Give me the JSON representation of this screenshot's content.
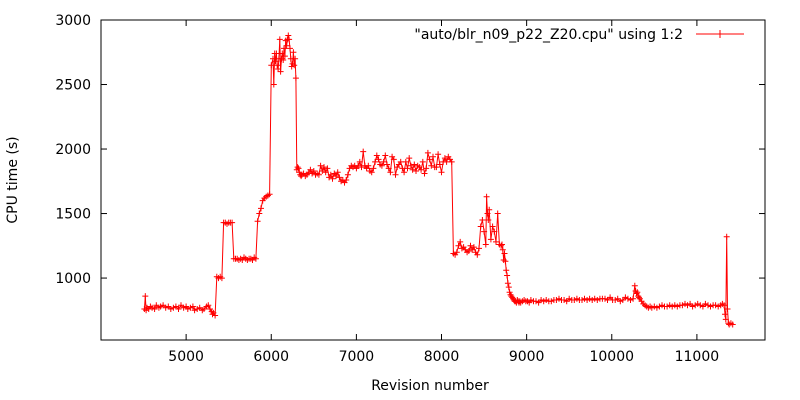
{
  "chart_data": {
    "type": "line",
    "xlabel": "Revision number",
    "ylabel": "CPU time (s)",
    "xlim": [
      4000,
      11800
    ],
    "ylim": [
      520,
      3000
    ],
    "xticks": [
      5000,
      6000,
      7000,
      8000,
      9000,
      10000,
      11000
    ],
    "yticks": [
      1000,
      1500,
      2000,
      2500,
      3000
    ],
    "legend": "top-right",
    "line_color": "#ff0000",
    "series": [
      {
        "name": "\"auto/blr_n09_p22_Z20.cpu\" using 1:2",
        "x": [
          4510,
          4520,
          4530,
          4540,
          4560,
          4580,
          4600,
          4630,
          4650,
          4680,
          4700,
          4730,
          4760,
          4790,
          4820,
          4850,
          4880,
          4910,
          4940,
          4970,
          5000,
          5020,
          5050,
          5080,
          5100,
          5130,
          5160,
          5190,
          5210,
          5240,
          5260,
          5280,
          5300,
          5310,
          5320,
          5340,
          5360,
          5380,
          5400,
          5420,
          5440,
          5460,
          5480,
          5500,
          5520,
          5540,
          5560,
          5580,
          5600,
          5620,
          5640,
          5660,
          5680,
          5700,
          5720,
          5740,
          5760,
          5780,
          5800,
          5820,
          5840,
          5860,
          5880,
          5900,
          5920,
          5940,
          5960,
          5980,
          6000,
          6020,
          6030,
          6040,
          6050,
          6060,
          6070,
          6080,
          6090,
          6100,
          6110,
          6120,
          6130,
          6140,
          6150,
          6160,
          6170,
          6180,
          6190,
          6200,
          6210,
          6220,
          6230,
          6240,
          6250,
          6260,
          6270,
          6280,
          6290,
          6300,
          6310,
          6320,
          6330,
          6340,
          6350,
          6360,
          6380,
          6400,
          6420,
          6440,
          6460,
          6480,
          6500,
          6520,
          6540,
          6560,
          6580,
          6600,
          6620,
          6640,
          6660,
          6680,
          6700,
          6720,
          6740,
          6760,
          6780,
          6800,
          6820,
          6840,
          6860,
          6880,
          6900,
          6920,
          6940,
          6960,
          6980,
          7000,
          7020,
          7040,
          7060,
          7080,
          7100,
          7120,
          7140,
          7160,
          7180,
          7200,
          7220,
          7240,
          7260,
          7280,
          7300,
          7320,
          7340,
          7360,
          7380,
          7400,
          7420,
          7440,
          7460,
          7480,
          7500,
          7520,
          7540,
          7560,
          7580,
          7600,
          7620,
          7640,
          7660,
          7680,
          7700,
          7720,
          7740,
          7760,
          7780,
          7800,
          7820,
          7840,
          7860,
          7880,
          7900,
          7920,
          7940,
          7960,
          7980,
          8000,
          8020,
          8040,
          8060,
          8080,
          8100,
          8120,
          8140,
          8160,
          8180,
          8200,
          8220,
          8240,
          8260,
          8280,
          8300,
          8320,
          8340,
          8360,
          8380,
          8400,
          8420,
          8440,
          8460,
          8480,
          8500,
          8520,
          8530,
          8540,
          8550,
          8560,
          8580,
          8600,
          8620,
          8640,
          8660,
          8680,
          8700,
          8710,
          8720,
          8730,
          8740,
          8750,
          8760,
          8770,
          8780,
          8790,
          8800,
          8810,
          8820,
          8830,
          8840,
          8850,
          8860,
          8870,
          8880,
          8890,
          8900,
          8910,
          8920,
          8930,
          8950,
          8970,
          8990,
          9010,
          9030,
          9050,
          9080,
          9110,
          9140,
          9170,
          9200,
          9230,
          9260,
          9290,
          9320,
          9350,
          9380,
          9410,
          9440,
          9470,
          9500,
          9530,
          9560,
          9590,
          9620,
          9650,
          9680,
          9710,
          9740,
          9770,
          9800,
          9830,
          9860,
          9890,
          9920,
          9950,
          9980,
          10010,
          10040,
          10070,
          10100,
          10130,
          10160,
          10190,
          10220,
          10250,
          10270,
          10280,
          10290,
          10300,
          10310,
          10320,
          10330,
          10350,
          10370,
          10390,
          10410,
          10430,
          10450,
          10470,
          10500,
          10530,
          10560,
          10590,
          10620,
          10650,
          10680,
          10710,
          10740,
          10770,
          10800,
          10830,
          10860,
          10890,
          10920,
          10950,
          10980,
          11010,
          11040,
          11070,
          11100,
          11130,
          11160,
          11190,
          11220,
          11250,
          11280,
          11300,
          11320,
          11330,
          11340,
          11350,
          11360,
          11370,
          11380,
          11400,
          11420
        ],
        "y": [
          760,
          860,
          750,
          770,
          760,
          780,
          770,
          760,
          790,
          770,
          780,
          790,
          770,
          780,
          760,
          770,
          780,
          760,
          790,
          770,
          780,
          760,
          770,
          780,
          750,
          760,
          770,
          750,
          760,
          780,
          790,
          760,
          740,
          720,
          730,
          710,
          1010,
          1000,
          1010,
          1000,
          1430,
          1430,
          1420,
          1430,
          1430,
          1430,
          1150,
          1150,
          1150,
          1140,
          1150,
          1140,
          1160,
          1150,
          1140,
          1150,
          1150,
          1140,
          1160,
          1150,
          1440,
          1500,
          1540,
          1600,
          1620,
          1630,
          1640,
          1650,
          2650,
          2700,
          2500,
          2740,
          2680,
          2740,
          2650,
          2620,
          2700,
          2850,
          2600,
          2700,
          2740,
          2690,
          2780,
          2720,
          2840,
          2800,
          2850,
          2880,
          2850,
          2780,
          2700,
          2640,
          2660,
          2750,
          2650,
          2700,
          2550,
          1840,
          1860,
          1850,
          1820,
          1800,
          1790,
          1800,
          1810,
          1790,
          1800,
          1820,
          1840,
          1810,
          1830,
          1800,
          1810,
          1800,
          1870,
          1830,
          1860,
          1820,
          1850,
          1780,
          1800,
          1770,
          1810,
          1790,
          1820,
          1780,
          1750,
          1760,
          1740,
          1760,
          1800,
          1850,
          1870,
          1860,
          1870,
          1850,
          1870,
          1900,
          1860,
          1980,
          1870,
          1850,
          1870,
          1830,
          1820,
          1850,
          1900,
          1950,
          1920,
          1880,
          1870,
          1900,
          1950,
          1880,
          1850,
          1820,
          1940,
          1920,
          1800,
          1860,
          1880,
          1900,
          1850,
          1820,
          1900,
          1850,
          1930,
          1870,
          1840,
          1880,
          1830,
          1870,
          1860,
          1840,
          1900,
          1810,
          1850,
          1970,
          1920,
          1870,
          1940,
          1860,
          1860,
          1960,
          1880,
          1820,
          1900,
          1930,
          1900,
          1940,
          1920,
          1900,
          1190,
          1180,
          1200,
          1250,
          1280,
          1230,
          1240,
          1220,
          1200,
          1210,
          1250,
          1220,
          1240,
          1200,
          1180,
          1230,
          1400,
          1450,
          1360,
          1260,
          1630,
          1500,
          1450,
          1530,
          1300,
          1400,
          1360,
          1280,
          1500,
          1260,
          1250,
          1260,
          1220,
          1140,
          1190,
          1130,
          1060,
          1020,
          960,
          930,
          890,
          870,
          860,
          850,
          840,
          830,
          820,
          820,
          810,
          830,
          820,
          810,
          820,
          810,
          820,
          830,
          820,
          820,
          810,
          830,
          820,
          820,
          810,
          830,
          820,
          830,
          820,
          820,
          830,
          830,
          840,
          830,
          830,
          820,
          840,
          830,
          830,
          840,
          830,
          830,
          840,
          830,
          840,
          830,
          840,
          830,
          840,
          840,
          840,
          830,
          850,
          830,
          830,
          840,
          820,
          830,
          850,
          840,
          830,
          840,
          940,
          900,
          880,
          890,
          860,
          850,
          840,
          820,
          800,
          790,
          780,
          770,
          780,
          770,
          780,
          770,
          780,
          790,
          780,
          780,
          790,
          780,
          790,
          780,
          790,
          790,
          800,
          790,
          800,
          780,
          790,
          800,
          790,
          780,
          800,
          790,
          780,
          790,
          790,
          780,
          790,
          800,
          790,
          720,
          680,
          1320,
          760,
          650,
          640,
          650,
          640
        ]
      }
    ]
  }
}
